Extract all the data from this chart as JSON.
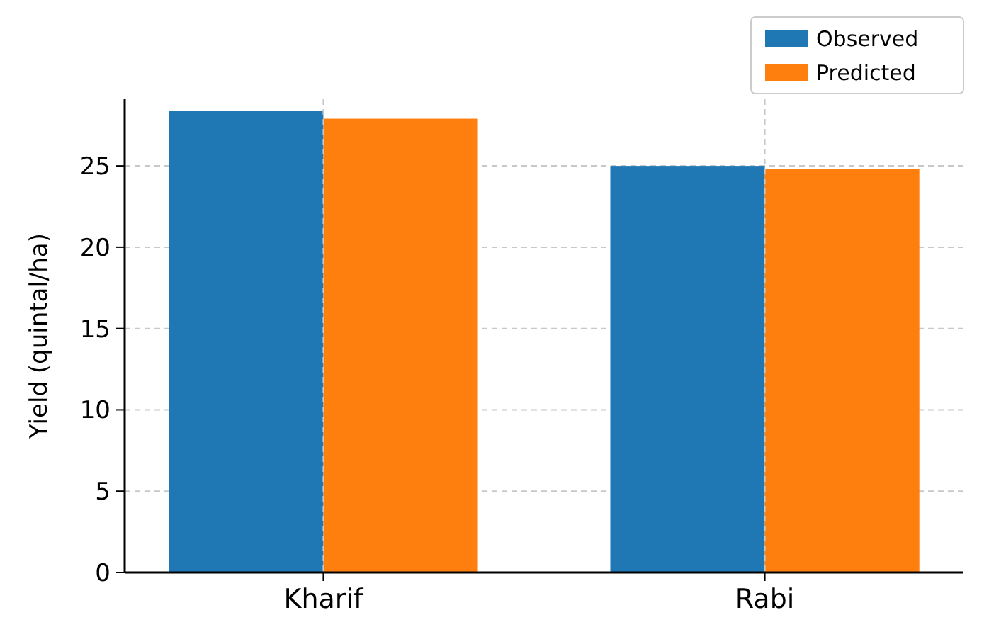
{
  "chart_data": {
    "type": "bar",
    "ylabel": "Yield (quintal/ha)",
    "categories": [
      "Kharif",
      "Rabi"
    ],
    "series": [
      {
        "name": "Observed",
        "color": "#1f77b4",
        "values": [
          28.4,
          25.0
        ]
      },
      {
        "name": "Predicted",
        "color": "#ff7f0e",
        "values": [
          27.9,
          24.8
        ]
      }
    ],
    "ylim": [
      0,
      29.1
    ],
    "yticks": [
      0,
      5,
      10,
      15,
      20,
      25
    ],
    "grid": true,
    "legend": "top right"
  }
}
